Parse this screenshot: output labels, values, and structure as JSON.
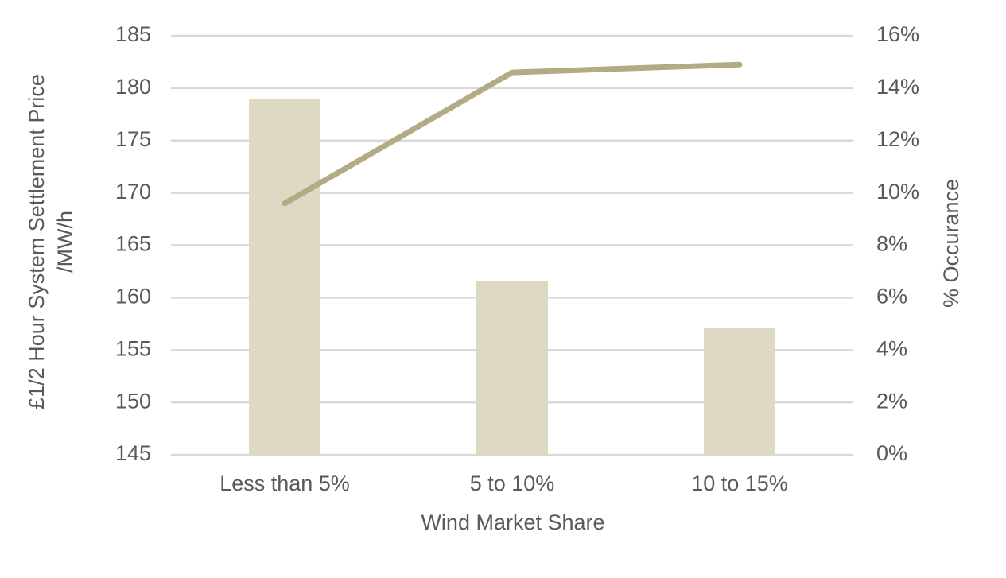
{
  "chart_data": {
    "type": "bar-line",
    "categories": [
      "Less than 5%",
      "5 to 10%",
      "10 to 15%"
    ],
    "series": [
      {
        "type": "bar",
        "color": "#ddd9c3",
        "values": [
          179,
          161.6,
          157.1
        ]
      },
      {
        "type": "line",
        "axis": "y2",
        "color": "#b3ab83",
        "values": [
          9.6,
          14.6,
          14.9
        ]
      }
    ],
    "ylim": [
      145,
      185
    ],
    "yticks": [
      145,
      150,
      155,
      160,
      165,
      170,
      175,
      180,
      185
    ],
    "y2lim": [
      0,
      16
    ],
    "y2ticks": [
      {
        "value": 0,
        "label": "0%"
      },
      {
        "value": 2,
        "label": "2%"
      },
      {
        "value": 4,
        "label": "4%"
      },
      {
        "value": 6,
        "label": "6%"
      },
      {
        "value": 8,
        "label": "8%"
      },
      {
        "value": 10,
        "label": "10%"
      },
      {
        "value": 12,
        "label": "12%"
      },
      {
        "value": 14,
        "label": "14%"
      },
      {
        "value": 16,
        "label": "16%"
      }
    ],
    "xlabel": "Wind Market Share",
    "ylabel": [
      "£1/2 Hour System Settlement Price",
      "/MW/h"
    ],
    "y2label": "% Occurance",
    "grid": true
  }
}
